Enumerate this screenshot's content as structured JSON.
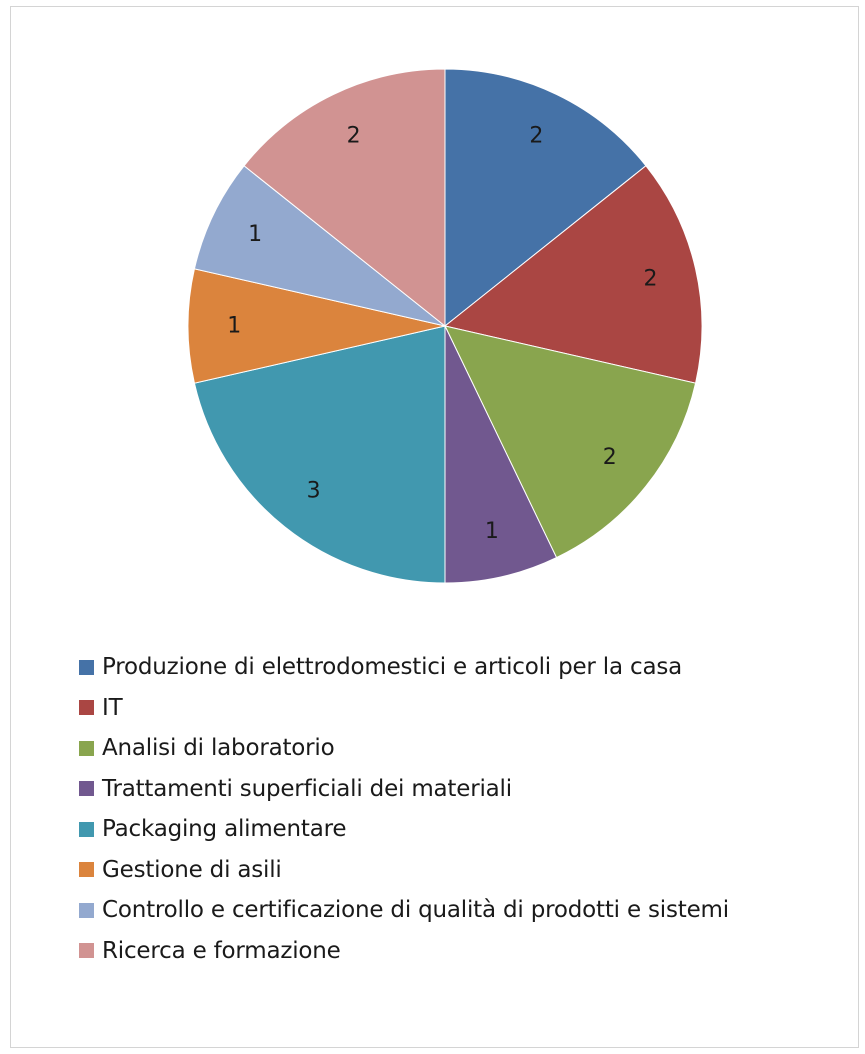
{
  "chart_data": {
    "type": "pie",
    "title": "",
    "slices": [
      {
        "label": "Produzione di elettrodomestici e articoli per la casa",
        "value": 2,
        "color": "#4572a7"
      },
      {
        "label": "IT",
        "value": 2,
        "color": "#aa4643"
      },
      {
        "label": "Analisi di laboratorio",
        "value": 2,
        "color": "#89a54e"
      },
      {
        "label": "Trattamenti superficiali dei materiali",
        "value": 1,
        "color": "#71588f"
      },
      {
        "label": "Packaging alimentare",
        "value": 3,
        "color": "#4198af"
      },
      {
        "label": "Gestione di asili",
        "value": 1,
        "color": "#db843d"
      },
      {
        "label": "Controllo e certificazione di qualità di prodotti e sistemi",
        "value": 1,
        "color": "#93a9cf"
      },
      {
        "label": "Ricerca e formazione",
        "value": 2,
        "color": "#d19392"
      }
    ],
    "data_labels": true,
    "legend": "bottom"
  }
}
